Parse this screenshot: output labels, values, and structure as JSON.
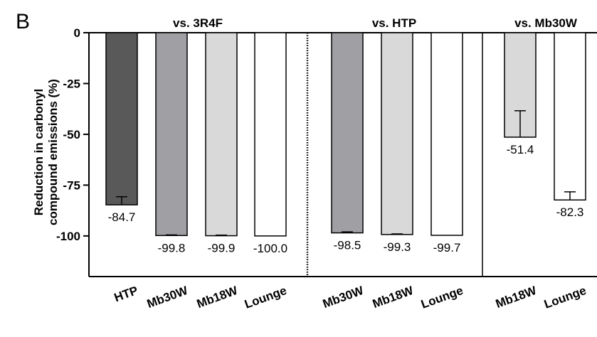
{
  "panel_label": "B",
  "chart_data": {
    "type": "bar",
    "ylabel_lines": [
      "Reduction in carbonyl",
      "compound emissions (%)"
    ],
    "ylim": [
      -120,
      0
    ],
    "yticks": [
      0,
      -25,
      -50,
      -75,
      -100
    ],
    "ytick_labels": [
      "0",
      "-25",
      "-50",
      "-75",
      "-100"
    ],
    "grid": false,
    "groups": [
      {
        "title": "vs. 3R4F",
        "divider": "dotted",
        "bars": [
          {
            "category": "HTP",
            "value": -84.7,
            "label": "-84.7",
            "error": 4.0,
            "color": "#595959"
          },
          {
            "category": "Mb30W",
            "value": -99.8,
            "label": "-99.8",
            "error": 0.3,
            "color": "#a0a0a4"
          },
          {
            "category": "Mb18W",
            "value": -99.9,
            "label": "-99.9",
            "error": 0.3,
            "color": "#d9d9d9"
          },
          {
            "category": "Lounge",
            "value": -100.0,
            "label": "-100.0",
            "error": 0,
            "color": "#ffffff"
          }
        ]
      },
      {
        "title": "vs. HTP",
        "divider": "solid",
        "bars": [
          {
            "category": "Mb30W",
            "value": -98.5,
            "label": "-98.5",
            "error": 0.5,
            "color": "#a0a0a4"
          },
          {
            "category": "Mb18W",
            "value": -99.3,
            "label": "-99.3",
            "error": 0.3,
            "color": "#d9d9d9"
          },
          {
            "category": "Lounge",
            "value": -99.7,
            "label": "-99.7",
            "error": 0,
            "color": "#ffffff"
          }
        ]
      },
      {
        "title": "vs. Mb30W",
        "divider": "none",
        "bars": [
          {
            "category": "Mb18W",
            "value": -51.4,
            "label": "-51.4",
            "error": 13.0,
            "color": "#d9d9d9"
          },
          {
            "category": "Lounge",
            "value": -82.3,
            "label": "-82.3",
            "error": 4.0,
            "color": "#ffffff"
          }
        ]
      }
    ]
  }
}
